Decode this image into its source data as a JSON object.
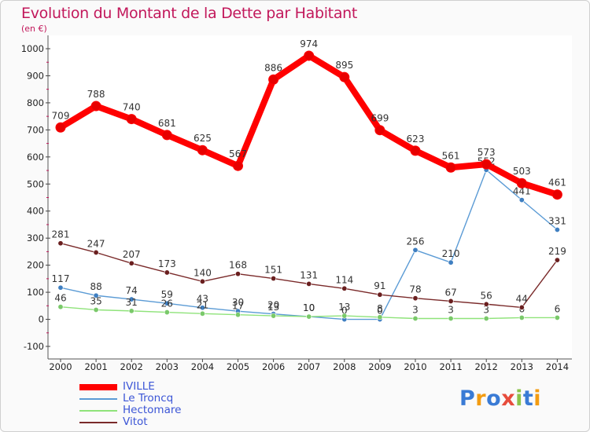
{
  "title": "Evolution du Montant de la Dette par Habitant",
  "subtitle": "(en €)",
  "chart_data": {
    "type": "line",
    "x": [
      "2000",
      "2001",
      "2002",
      "2003",
      "2004",
      "2005",
      "2006",
      "2007",
      "2008",
      "2009",
      "2010",
      "2011",
      "2012",
      "2013",
      "2014"
    ],
    "ylim": [
      -100,
      1000
    ],
    "yticks": [
      -100,
      0,
      100,
      200,
      300,
      400,
      500,
      600,
      700,
      800,
      900,
      1000
    ],
    "grid": false,
    "legend_position": "bottom-left",
    "series": [
      {
        "name": "IVILLE",
        "color": "#ff0000",
        "marker_color": "#e80000",
        "emphasis": true,
        "values": [
          709,
          788,
          740,
          681,
          625,
          567,
          886,
          974,
          895,
          699,
          623,
          561,
          573,
          503,
          461
        ]
      },
      {
        "name": "Le Troncq",
        "color": "#5b9bd5",
        "marker_color": "#3f7fc1",
        "emphasis": false,
        "values": [
          117,
          88,
          74,
          59,
          43,
          30,
          20,
          10,
          0,
          0,
          256,
          210,
          552,
          441,
          331
        ]
      },
      {
        "name": "Hectomare",
        "color": "#8fe37a",
        "marker_color": "#7ac96a",
        "emphasis": false,
        "values": [
          46,
          35,
          31,
          26,
          21,
          17,
          13,
          10,
          13,
          8,
          3,
          3,
          3,
          6,
          6
        ]
      },
      {
        "name": "Vitot",
        "color": "#7a2a2a",
        "marker_color": "#6a1f1f",
        "emphasis": false,
        "values": [
          281,
          247,
          207,
          173,
          140,
          168,
          151,
          131,
          114,
          91,
          78,
          67,
          56,
          44,
          219
        ]
      }
    ]
  },
  "logo": {
    "text": "Proxiti",
    "letter_colors": [
      "#3a7bd5",
      "#f39c12",
      "#3a7bd5",
      "#e74c3c",
      "#8bc34a",
      "#3a7bd5",
      "#f39c12"
    ]
  }
}
